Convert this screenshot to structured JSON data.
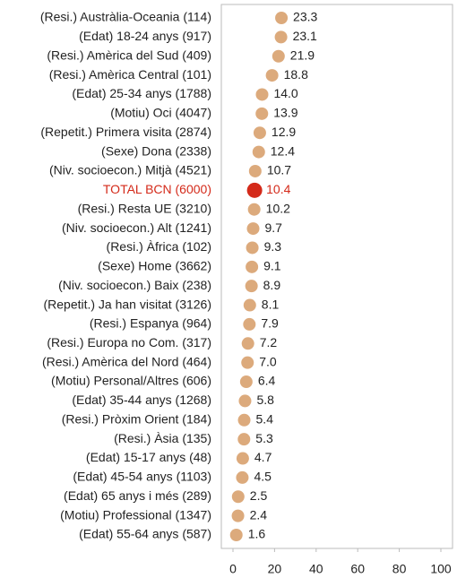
{
  "chart_data": {
    "type": "dot",
    "categories": [
      "(Resi.) Austràlia-Oceania (114)",
      "(Edat) 18-24 anys (917)",
      "(Resi.) Amèrica del Sud (409)",
      "(Resi.) Amèrica Central (101)",
      "(Edat) 25-34 anys (1788)",
      "(Motiu) Oci (4047)",
      "(Repetit.) Primera visita (2874)",
      "(Sexe) Dona (2338)",
      "(Niv. socioecon.) Mitjà (4521)",
      "TOTAL BCN (6000)",
      "(Resi.) Resta UE (3210)",
      "(Niv. socioecon.) Alt (1241)",
      "(Resi.) Àfrica (102)",
      "(Sexe) Home (3662)",
      "(Niv. socioecon.) Baix (238)",
      "(Repetit.) Ja han visitat (3126)",
      "(Resi.) Espanya (964)",
      "(Resi.) Europa no Com. (317)",
      "(Resi.) Amèrica del Nord (464)",
      "(Motiu) Personal/Altres (606)",
      "(Edat) 35-44 anys (1268)",
      "(Resi.) Pròxim Orient (184)",
      "(Resi.) Àsia (135)",
      "(Edat) 15-17 anys (48)",
      "(Edat) 45-54 anys (1103)",
      "(Edat) 65 anys i més (289)",
      "(Motiu) Professional (1347)",
      "(Edat) 55-64 anys (587)"
    ],
    "values": [
      23.3,
      23.1,
      21.9,
      18.8,
      14.0,
      13.9,
      12.9,
      12.4,
      10.7,
      10.4,
      10.2,
      9.7,
      9.3,
      9.1,
      8.9,
      8.1,
      7.9,
      7.2,
      7.0,
      6.4,
      5.8,
      5.4,
      5.3,
      4.7,
      4.5,
      2.5,
      2.4,
      1.6
    ],
    "value_labels": [
      "23.3",
      "23.1",
      "21.9",
      "18.8",
      "14.0",
      "13.9",
      "12.9",
      "12.4",
      "10.7",
      "10.4",
      "10.2",
      "9.7",
      "9.3",
      "9.1",
      "8.9",
      "8.1",
      "7.9",
      "7.2",
      "7.0",
      "6.4",
      "5.8",
      "5.4",
      "5.3",
      "4.7",
      "4.5",
      "2.5",
      "2.4",
      "1.6"
    ],
    "color": "#dcaa7c",
    "colors": [
      "#dcaa7c",
      "#dcaa7c",
      "#dcaa7c",
      "#dcaa7c",
      "#dcaa7c",
      "#dcaa7c",
      "#dcaa7c",
      "#dcaa7c",
      "#dcaa7c",
      "#d42a1a",
      "#dcaa7c",
      "#dcaa7c",
      "#dcaa7c",
      "#dcaa7c",
      "#dcaa7c",
      "#dcaa7c",
      "#dcaa7c",
      "#dcaa7c",
      "#dcaa7c",
      "#dcaa7c",
      "#dcaa7c",
      "#dcaa7c",
      "#dcaa7c",
      "#dcaa7c",
      "#dcaa7c",
      "#dcaa7c",
      "#dcaa7c",
      "#dcaa7c"
    ],
    "xlim": [
      0,
      100
    ],
    "xticks": [
      0,
      20,
      40,
      60,
      80,
      100
    ],
    "grid": false
  }
}
